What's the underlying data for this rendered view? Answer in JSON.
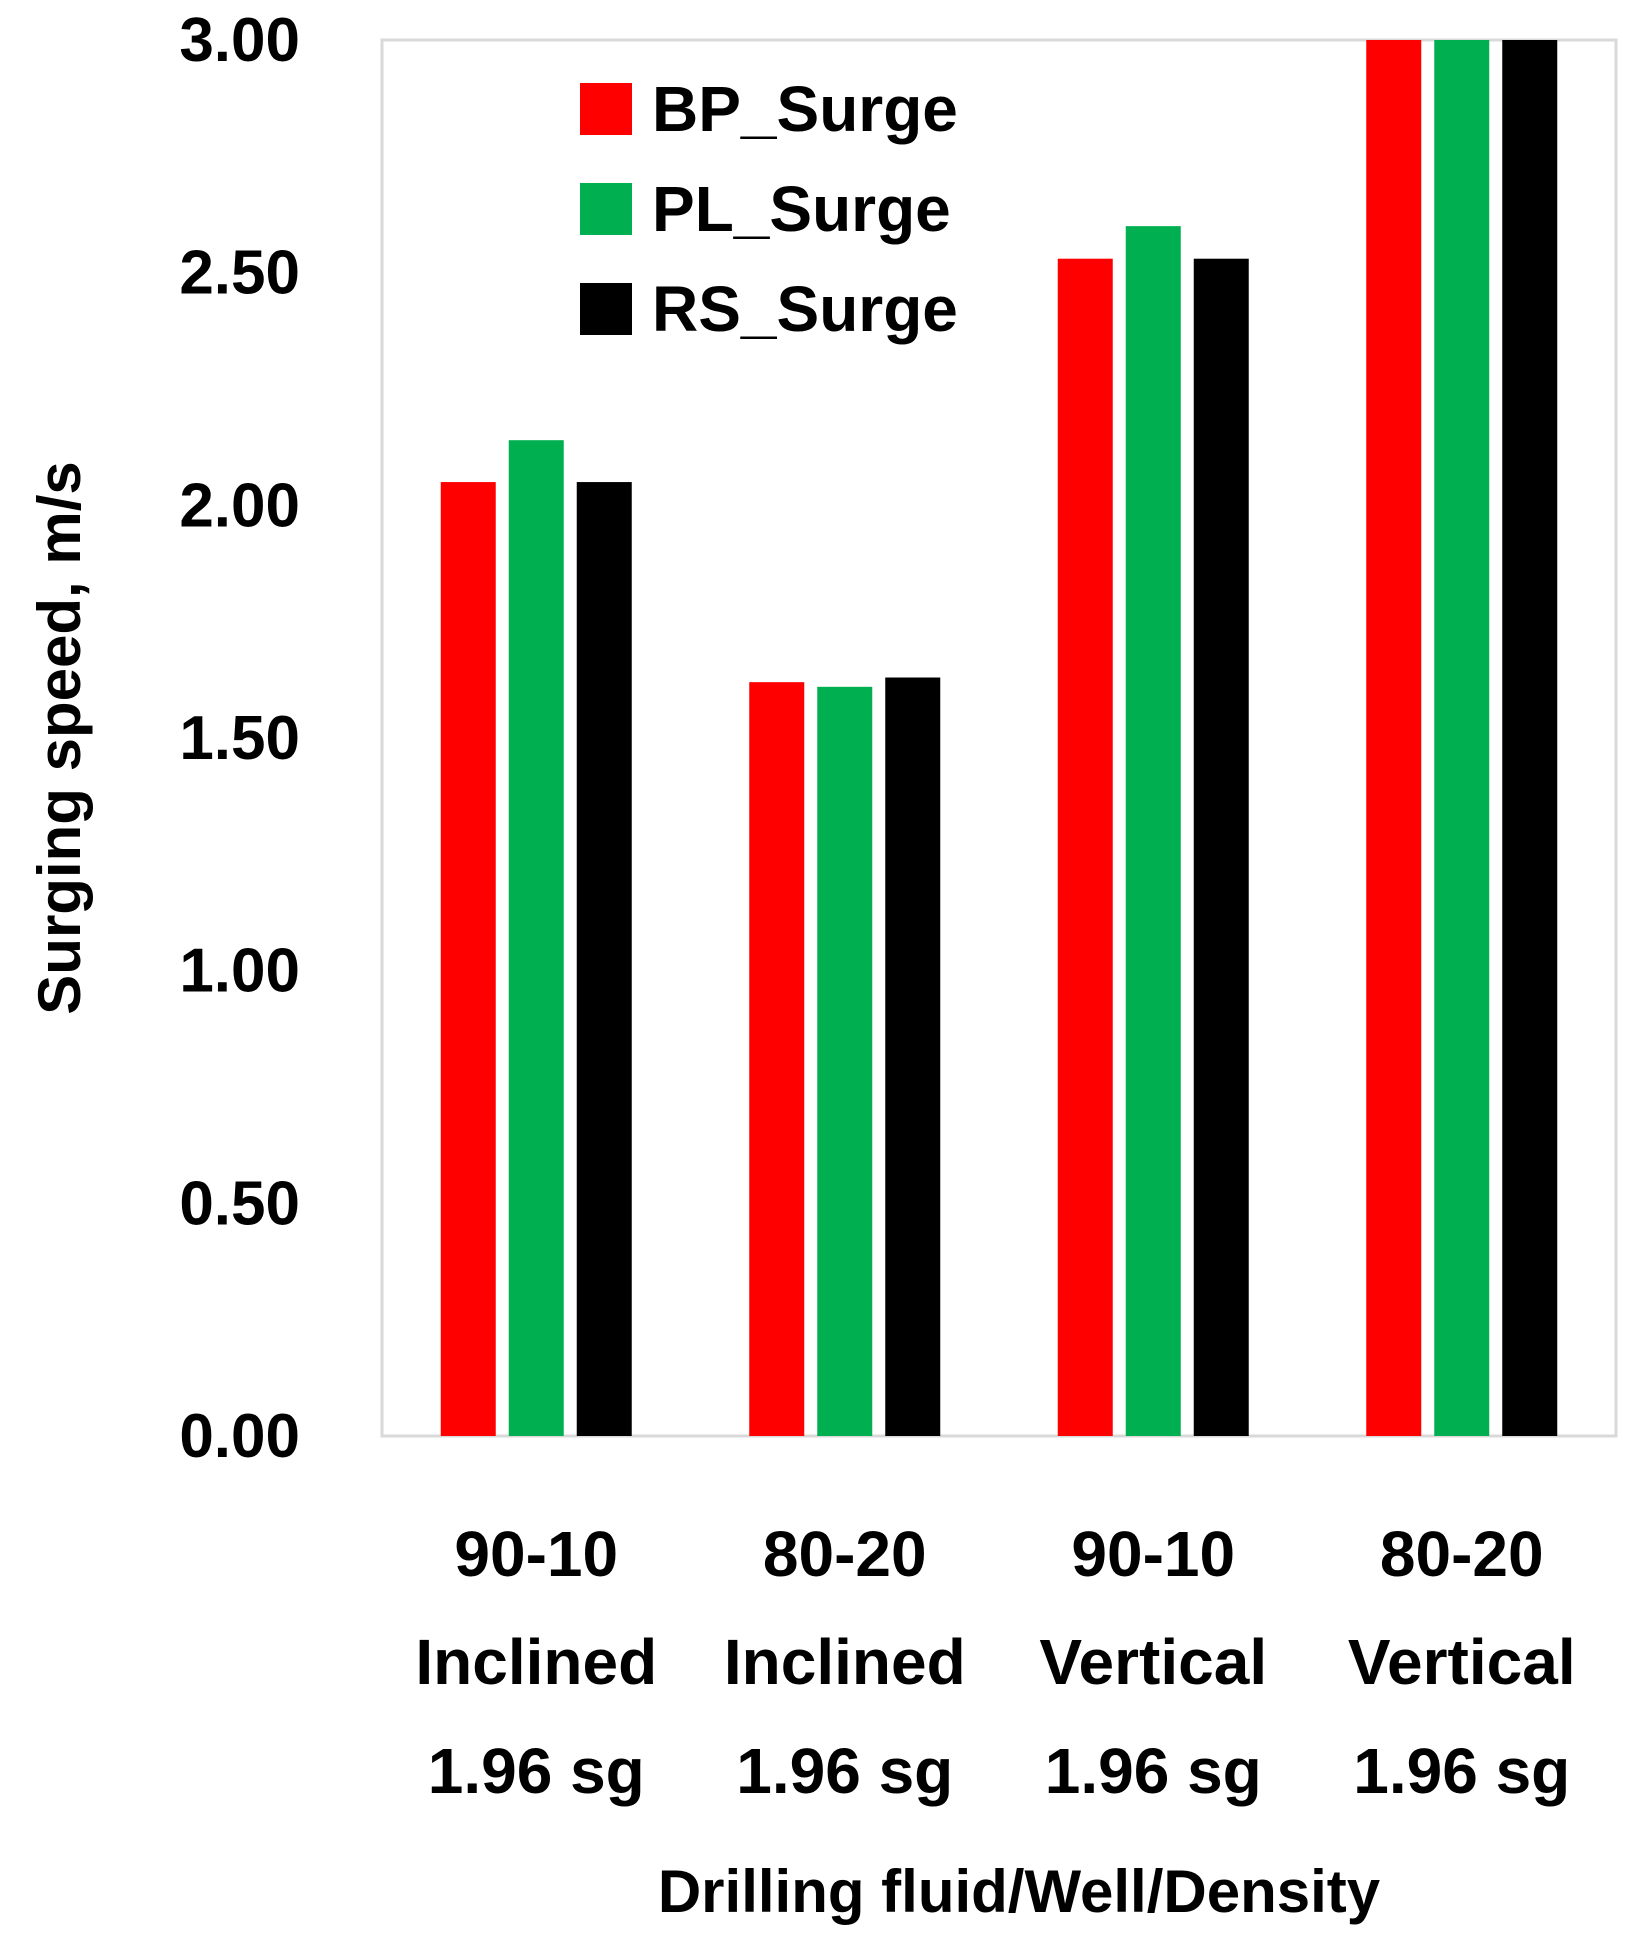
{
  "chart_data": {
    "type": "bar",
    "title": "",
    "xlabel": "Drilling fluid/Well/Density",
    "ylabel": "Surging speed, m/s",
    "ylim": [
      0,
      3.0
    ],
    "yticks": [
      "0.00",
      "0.50",
      "1.00",
      "1.50",
      "2.00",
      "2.50",
      "3.00"
    ],
    "grid": false,
    "legend_position": "top-left",
    "categories": [
      {
        "line1": "90-10",
        "line2": "Inclined",
        "line3": "1.96 sg"
      },
      {
        "line1": "80-20",
        "line2": "Inclined",
        "line3": "1.96 sg"
      },
      {
        "line1": "90-10",
        "line2": "Vertical",
        "line3": "1.96 sg"
      },
      {
        "line1": "80-20",
        "line2": "Vertical",
        "line3": "1.96 sg"
      }
    ],
    "series": [
      {
        "name": "BP_Surge",
        "color": "#ff0000",
        "values": [
          2.05,
          1.62,
          2.53,
          3.0
        ]
      },
      {
        "name": "PL_Surge",
        "color": "#00b050",
        "values": [
          2.14,
          1.61,
          2.6,
          3.0
        ]
      },
      {
        "name": "RS_Surge",
        "color": "#000000",
        "values": [
          2.05,
          1.63,
          2.53,
          3.0
        ]
      }
    ]
  }
}
